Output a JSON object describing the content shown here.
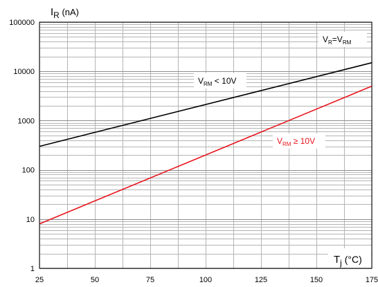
{
  "chart_data": {
    "type": "line",
    "title": "",
    "ylabel": {
      "main": "I",
      "sub": "R",
      "unit": " (nA)"
    },
    "xlabel": {
      "main": "T",
      "sub": "j",
      "unit": " (°C)"
    },
    "xlim": [
      25,
      175
    ],
    "ylim": [
      1,
      100000
    ],
    "yscale": "log",
    "grid": true,
    "x_ticks": [
      "25",
      "50",
      "75",
      "100",
      "125",
      "150",
      "175"
    ],
    "y_ticks": [
      "1",
      "10",
      "100",
      "1000",
      "10000",
      "100000"
    ],
    "series": [
      {
        "x": [
          25,
          175
        ],
        "y": [
          300,
          15000
        ],
        "color": "#000000"
      },
      {
        "x": [
          25,
          175
        ],
        "y": [
          8,
          5000
        ],
        "color": "#e8141c"
      }
    ],
    "annotations": {
      "condition": {
        "a": "V",
        "a_sub": "R",
        "eq": "=V",
        "b_sub": "RM",
        "color": "#000000"
      },
      "black_series": {
        "a": "V",
        "a_sub": "RM",
        "rest": " < 10V",
        "color": "#000000"
      },
      "red_series": {
        "a": "V",
        "a_sub": "RM",
        "rest": " ≥ 10V",
        "color": "#e8141c"
      }
    }
  }
}
